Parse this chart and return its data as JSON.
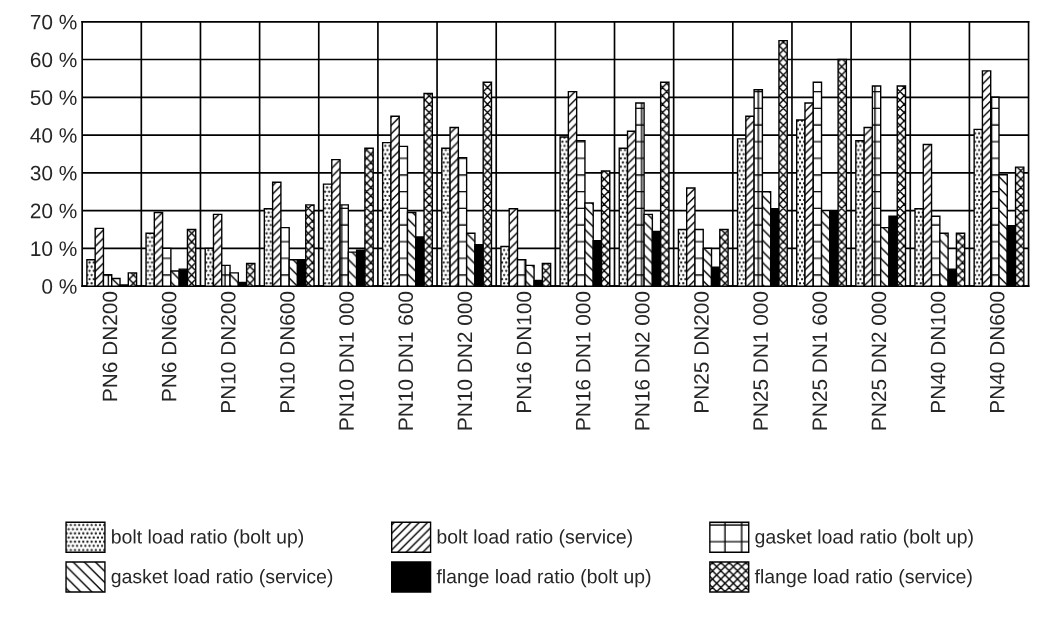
{
  "chart_data": {
    "type": "bar",
    "categories": [
      "PN6 DN200",
      "PN6 DN600",
      "PN10 DN200",
      "PN10 DN600",
      "PN10 DN1 000",
      "PN10 DN1 600",
      "PN10 DN2 000",
      "PN16 DN100",
      "PN16 DN1 000",
      "PN16 DN2 000",
      "PN25 DN200",
      "PN25 DN1 000",
      "PN25 DN1 600",
      "PN25 DN2 000",
      "PN40 DN100",
      "PN40 DN600"
    ],
    "series": [
      {
        "name": "bolt load ratio (bolt up)",
        "color": "#000000",
        "values": [
          7,
          14,
          10,
          20.5,
          27,
          38,
          36.5,
          10.5,
          39.5,
          36.5,
          15,
          39,
          44,
          38.5,
          20.5,
          41.5
        ]
      },
      {
        "name": "bolt load ratio (service)",
        "color": "#000000",
        "values": [
          15.3,
          19.5,
          19,
          27.5,
          33.5,
          45,
          42,
          20.5,
          51.5,
          41,
          26,
          45,
          48.5,
          42,
          37.5,
          57
        ]
      },
      {
        "name": "gasket load ratio (bolt up)",
        "color": "#000000",
        "values": [
          3,
          10,
          5.5,
          15.5,
          21.5,
          37,
          34,
          7,
          38.5,
          48.5,
          15,
          52,
          54,
          53,
          18.5,
          50
        ]
      },
      {
        "name": "gasket load ratio (service)",
        "color": "#000000",
        "values": [
          2,
          4,
          3.5,
          7,
          9,
          19.5,
          14,
          5.5,
          22,
          19,
          10,
          25,
          20,
          15.5,
          14,
          29.5
        ]
      },
      {
        "name": "flange load ratio (bolt up)",
        "color": "#000000",
        "values": [
          0.3,
          4.5,
          1,
          7,
          9.5,
          13,
          11,
          1.5,
          12,
          14.5,
          5,
          20.5,
          20,
          18.5,
          4.5,
          16
        ]
      },
      {
        "name": "flange load ratio (service)",
        "color": "#000000",
        "values": [
          3.5,
          15,
          6,
          21.5,
          36.5,
          51,
          54,
          6,
          30.5,
          54,
          15,
          65,
          60,
          53,
          14,
          31.5
        ]
      }
    ],
    "ylim": [
      0,
      70
    ],
    "yticks": [
      {
        "value": 0,
        "label": "0 %"
      },
      {
        "value": 10,
        "label": "10 %"
      },
      {
        "value": 20,
        "label": "20 %"
      },
      {
        "value": 30,
        "label": "30 %"
      },
      {
        "value": 40,
        "label": "40 %"
      },
      {
        "value": 50,
        "label": "50 %"
      },
      {
        "value": 60,
        "label": "60 %"
      },
      {
        "value": 70,
        "label": "70 %"
      }
    ],
    "grid": true,
    "legend": "bottom"
  }
}
